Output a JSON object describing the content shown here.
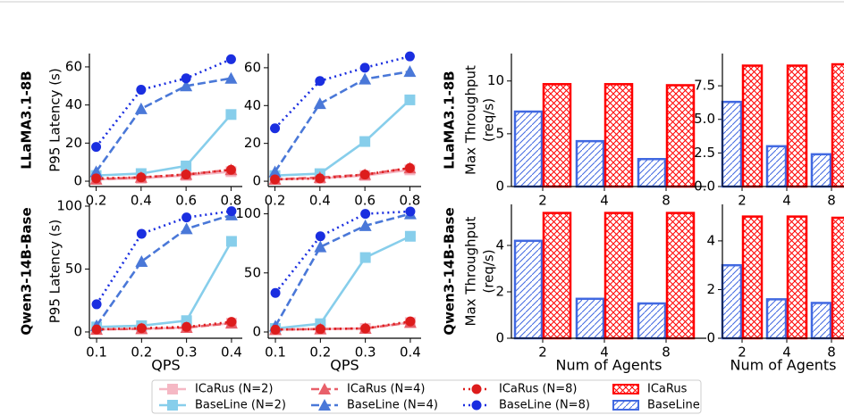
{
  "chart_data": [
    {
      "type": "line",
      "row_label": "LLaMA3.1-8B",
      "ylabel": "P95 Latency (s)",
      "legend": true,
      "x": [
        0.2,
        0.4,
        0.6,
        0.8
      ],
      "xlim": [
        0.17,
        0.85
      ],
      "xticks": [
        0.2,
        0.4,
        0.6,
        0.8
      ],
      "ylim": [
        -2.8,
        67
      ],
      "yticks": [
        0,
        20,
        40,
        60
      ],
      "series": [
        {
          "name": "ICaRus (N=2)",
          "color": "#f5b8c4",
          "marker": "square",
          "dash": "solid",
          "values": [
            1,
            1.5,
            3,
            5
          ]
        },
        {
          "name": "BaseLine (N=2)",
          "color": "#87ceeb",
          "marker": "square",
          "dash": "solid",
          "values": [
            3,
            4,
            8,
            35
          ]
        },
        {
          "name": "ICaRus (N=4)",
          "color": "#e8606a",
          "marker": "triangle",
          "dash": "dashed",
          "values": [
            1,
            2,
            3.5,
            6
          ]
        },
        {
          "name": "BaseLine (N=4)",
          "color": "#4a78d8",
          "marker": "triangle",
          "dash": "dashed",
          "values": [
            5,
            38,
            50,
            54
          ]
        },
        {
          "name": "ICaRus (N=8)",
          "color": "#dd1c1c",
          "marker": "circle",
          "dash": "dotted",
          "values": [
            1.5,
            2,
            3.5,
            6
          ]
        },
        {
          "name": "BaseLine (N=8)",
          "color": "#1a2ee0",
          "marker": "circle",
          "dash": "dotted",
          "values": [
            18,
            48,
            54,
            64
          ]
        }
      ]
    },
    {
      "type": "line",
      "x": [
        0.2,
        0.4,
        0.6,
        0.8
      ],
      "xlim": [
        0.17,
        0.85
      ],
      "xticks": [
        0.2,
        0.4,
        0.6,
        0.8
      ],
      "ylim": [
        -2.8,
        67.5
      ],
      "yticks": [
        0,
        20,
        40,
        60
      ],
      "series": [
        {
          "name": "ICaRus (N=2)",
          "color": "#f5b8c4",
          "marker": "square",
          "dash": "solid",
          "values": [
            1,
            1.5,
            3,
            6
          ]
        },
        {
          "name": "BaseLine (N=2)",
          "color": "#87ceeb",
          "marker": "square",
          "dash": "solid",
          "values": [
            3,
            4,
            21,
            43
          ]
        },
        {
          "name": "ICaRus (N=4)",
          "color": "#e8606a",
          "marker": "triangle",
          "dash": "dashed",
          "values": [
            1,
            2,
            3.5,
            7
          ]
        },
        {
          "name": "BaseLine (N=4)",
          "color": "#4a78d8",
          "marker": "triangle",
          "dash": "dashed",
          "values": [
            5,
            41,
            54,
            58
          ]
        },
        {
          "name": "ICaRus (N=8)",
          "color": "#dd1c1c",
          "marker": "circle",
          "dash": "dotted",
          "values": [
            1,
            1.5,
            3.5,
            7
          ]
        },
        {
          "name": "BaseLine (N=8)",
          "color": "#1a2ee0",
          "marker": "circle",
          "dash": "dotted",
          "values": [
            28,
            53,
            60,
            66
          ]
        }
      ]
    },
    {
      "type": "line",
      "row_label": "Qwen3-14B-Base",
      "ylabel": "P95 Latency (s)",
      "xlabel": "QPS",
      "x": [
        0.1,
        0.2,
        0.3,
        0.4
      ],
      "xlim": [
        0.084,
        0.424
      ],
      "xticks": [
        0.1,
        0.2,
        0.3,
        0.4
      ],
      "ylim": [
        -5,
        101.4
      ],
      "yticks": [
        0,
        50,
        100
      ],
      "series": [
        {
          "name": "ICaRus (N=2)",
          "color": "#f5b8c4",
          "marker": "square",
          "dash": "solid",
          "values": [
            2,
            2.5,
            3.5,
            7
          ]
        },
        {
          "name": "BaseLine (N=2)",
          "color": "#87ceeb",
          "marker": "square",
          "dash": "solid",
          "values": [
            4,
            5,
            9,
            72
          ]
        },
        {
          "name": "ICaRus (N=4)",
          "color": "#e8606a",
          "marker": "triangle",
          "dash": "dashed",
          "values": [
            2,
            2.5,
            3.5,
            7
          ]
        },
        {
          "name": "BaseLine (N=4)",
          "color": "#4a78d8",
          "marker": "triangle",
          "dash": "dashed",
          "values": [
            5,
            56,
            82,
            93
          ]
        },
        {
          "name": "ICaRus (N=8)",
          "color": "#dd1c1c",
          "marker": "circle",
          "dash": "dotted",
          "values": [
            2,
            3,
            4,
            8
          ]
        },
        {
          "name": "BaseLine (N=8)",
          "color": "#1a2ee0",
          "marker": "circle",
          "dash": "dotted",
          "values": [
            22,
            78,
            91,
            96
          ]
        }
      ]
    },
    {
      "type": "line",
      "xlabel": "QPS",
      "x": [
        0.1,
        0.2,
        0.3,
        0.4
      ],
      "xlim": [
        0.084,
        0.424
      ],
      "xticks": [
        0.1,
        0.2,
        0.3,
        0.4
      ],
      "ylim": [
        -5.3,
        108
      ],
      "yticks": [
        0,
        50,
        100
      ],
      "series": [
        {
          "name": "ICaRus (N=2)",
          "color": "#f5b8c4",
          "marker": "square",
          "dash": "solid",
          "values": [
            2,
            2.5,
            3,
            8
          ]
        },
        {
          "name": "BaseLine (N=2)",
          "color": "#87ceeb",
          "marker": "square",
          "dash": "solid",
          "values": [
            3,
            7,
            63,
            81
          ]
        },
        {
          "name": "ICaRus (N=4)",
          "color": "#e8606a",
          "marker": "triangle",
          "dash": "dashed",
          "values": [
            2,
            2.5,
            3,
            8
          ]
        },
        {
          "name": "BaseLine (N=4)",
          "color": "#4a78d8",
          "marker": "triangle",
          "dash": "dashed",
          "values": [
            5,
            72,
            90,
            100
          ]
        },
        {
          "name": "ICaRus (N=8)",
          "color": "#dd1c1c",
          "marker": "circle",
          "dash": "dotted",
          "values": [
            2,
            2.5,
            3,
            9
          ]
        },
        {
          "name": "BaseLine (N=8)",
          "color": "#1a2ee0",
          "marker": "circle",
          "dash": "dotted",
          "values": [
            33,
            81,
            100,
            102
          ]
        }
      ]
    },
    {
      "type": "bar",
      "row_label": "LLaMA3.1-8B",
      "ylabel": [
        "Max Throughput",
        "(req/s)"
      ],
      "legend": true,
      "categories": [
        "2",
        "4",
        "8"
      ],
      "ylim": [
        0,
        12.6
      ],
      "yticks": [
        0,
        5,
        10
      ],
      "series": [
        {
          "name": "BaseLine",
          "color": "#4169e1",
          "hatch": "/",
          "values": [
            7.1,
            4.3,
            2.6
          ]
        },
        {
          "name": "ICaRus",
          "color": "#ff0000",
          "hatch": "x",
          "values": [
            9.7,
            9.7,
            9.6
          ]
        }
      ]
    },
    {
      "type": "bar",
      "categories": [
        "2",
        "4",
        "8"
      ],
      "ylim": [
        0,
        9.9
      ],
      "yticks": [
        {
          "value": 0,
          "label": "0.0"
        },
        2.5,
        {
          "value": 5,
          "label": "5.0"
        },
        7.5
      ],
      "series": [
        {
          "name": "BaseLine",
          "color": "#4169e1",
          "hatch": "/",
          "values": [
            6.3,
            3.0,
            2.4
          ]
        },
        {
          "name": "ICaRus",
          "color": "#ff0000",
          "hatch": "x",
          "values": [
            9.0,
            9.0,
            9.1
          ]
        }
      ]
    },
    {
      "type": "bar",
      "row_label": "Qwen3-14B-Base",
      "ylabel": [
        "Max Throughput",
        "(req/s)"
      ],
      "xlabel": "Num of Agents",
      "categories": [
        "2",
        "4",
        "8"
      ],
      "ylim": [
        0,
        5.77
      ],
      "yticks": [
        0,
        2,
        4
      ],
      "series": [
        {
          "name": "BaseLine",
          "color": "#4169e1",
          "hatch": "/",
          "values": [
            4.2,
            1.7,
            1.5
          ]
        },
        {
          "name": "ICaRus",
          "color": "#ff0000",
          "hatch": "x",
          "values": [
            5.4,
            5.4,
            5.4
          ]
        }
      ]
    },
    {
      "type": "bar",
      "xlabel": "Num of Agents",
      "categories": [
        "2",
        "4",
        "8"
      ],
      "ylim": [
        0,
        5.5
      ],
      "yticks": [
        0,
        2,
        4
      ],
      "series": [
        {
          "name": "BaseLine",
          "color": "#4169e1",
          "hatch": "/",
          "values": [
            3.0,
            1.6,
            1.45
          ]
        },
        {
          "name": "ICaRus",
          "color": "#ff0000",
          "hatch": "x",
          "values": [
            5.0,
            5.0,
            4.95
          ]
        }
      ]
    }
  ]
}
